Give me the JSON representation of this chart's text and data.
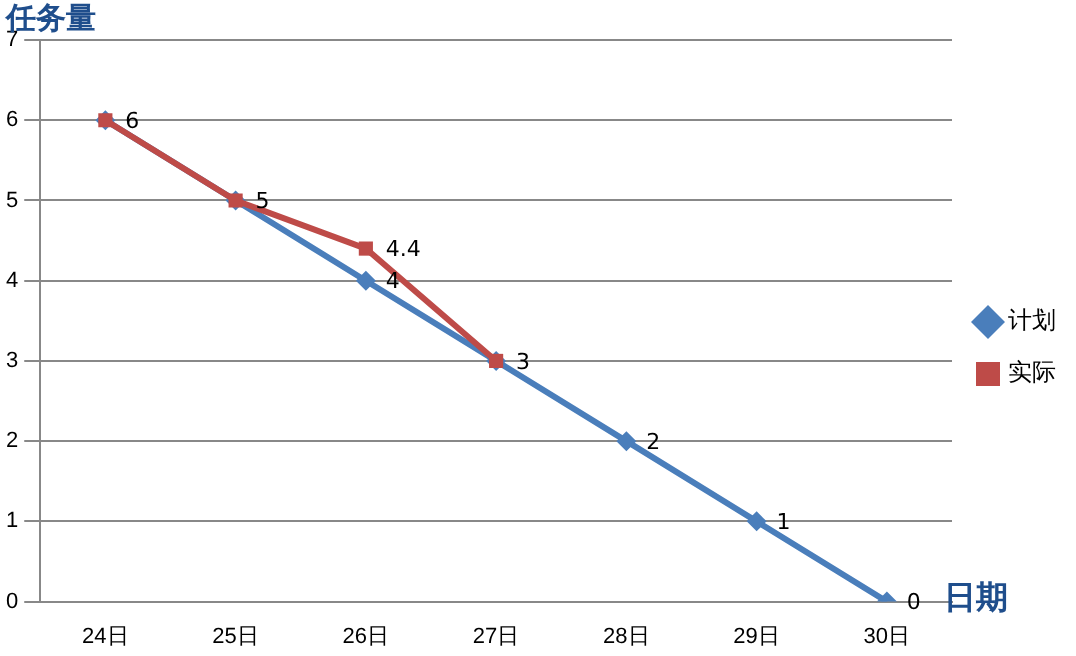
{
  "chart_data": {
    "type": "line",
    "ylabel": "任务量",
    "xlabel": "日期",
    "categories": [
      "24日",
      "25日",
      "26日",
      "27日",
      "28日",
      "29日",
      "30日"
    ],
    "series": [
      {
        "name": "计划",
        "color": "#4a7ebb",
        "marker": "diamond",
        "values": [
          6,
          5,
          4,
          3,
          2,
          1,
          0
        ],
        "value_labels": [
          null,
          null,
          "4",
          null,
          "2",
          "1",
          "0"
        ]
      },
      {
        "name": "实际",
        "color": "#be4b48",
        "marker": "square",
        "values": [
          6,
          5,
          4.4,
          3,
          null,
          null,
          null
        ],
        "value_labels": [
          "6",
          "5",
          "4.4",
          "3",
          null,
          null,
          null
        ]
      }
    ],
    "ylim": [
      0,
      7
    ],
    "yticks": [
      0,
      1,
      2,
      3,
      4,
      5,
      6,
      7
    ],
    "grid": "y",
    "legend": "right"
  }
}
